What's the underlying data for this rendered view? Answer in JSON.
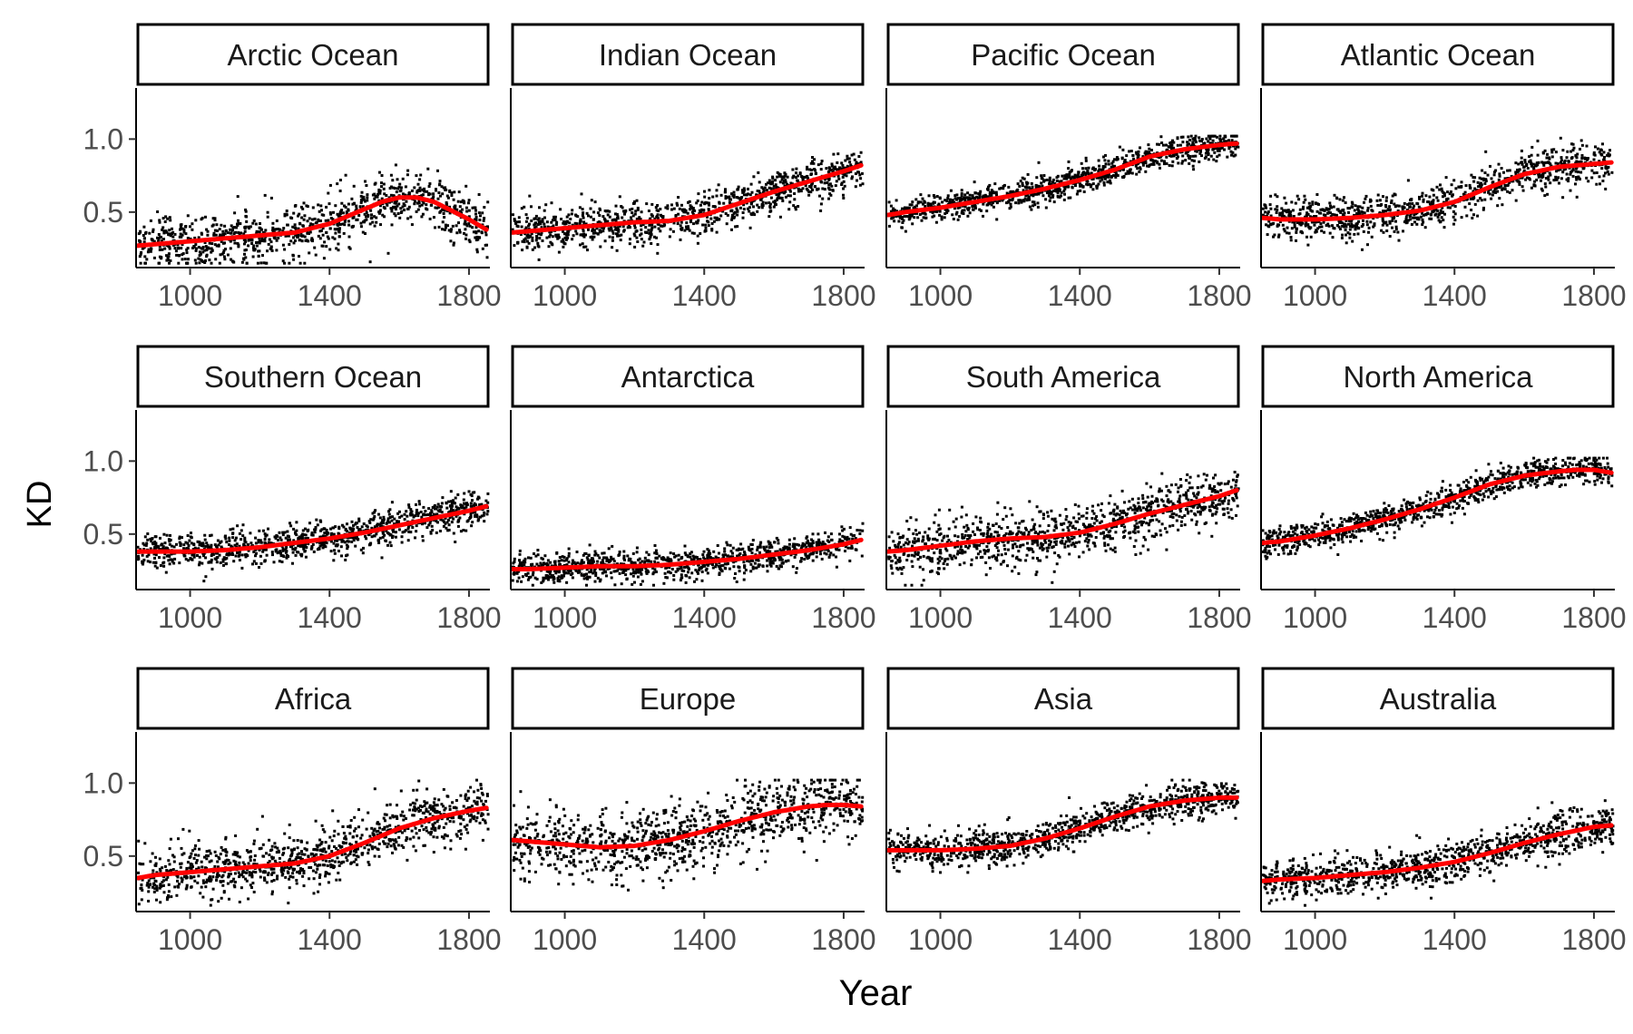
{
  "chart_data": {
    "type": "scatter",
    "layout": "facet-grid",
    "facet_rows": 3,
    "facet_cols": 4,
    "xlabel": "Year",
    "ylabel": "KD",
    "xlim": [
      845,
      1860
    ],
    "ylim": [
      0.12,
      1.35
    ],
    "x_ticks": [
      1000,
      1400,
      1800
    ],
    "y_ticks": [
      0.5,
      1.0
    ],
    "y_tick_labels": [
      "0.5",
      "1.0"
    ],
    "grid": false,
    "point_color": "#000000",
    "smooth_color": "#ff0000",
    "series_per_panel": [
      "points",
      "smooth trend"
    ],
    "panels": [
      {
        "name": "Arctic Ocean",
        "trend": {
          "x": [
            850,
            900,
            1000,
            1100,
            1200,
            1300,
            1400,
            1500,
            1550,
            1600,
            1650,
            1700,
            1750,
            1800,
            1850
          ],
          "y": [
            0.27,
            0.28,
            0.3,
            0.32,
            0.34,
            0.36,
            0.42,
            0.52,
            0.57,
            0.6,
            0.6,
            0.57,
            0.51,
            0.45,
            0.38
          ]
        },
        "spread": 0.09
      },
      {
        "name": "Indian Ocean",
        "trend": {
          "x": [
            850,
            900,
            1000,
            1100,
            1200,
            1300,
            1400,
            1500,
            1600,
            1700,
            1800,
            1850
          ],
          "y": [
            0.36,
            0.37,
            0.39,
            0.41,
            0.43,
            0.44,
            0.48,
            0.56,
            0.64,
            0.71,
            0.78,
            0.82
          ]
        },
        "spread": 0.07
      },
      {
        "name": "Pacific Ocean",
        "trend": {
          "x": [
            850,
            900,
            1000,
            1100,
            1200,
            1300,
            1400,
            1500,
            1600,
            1700,
            1800,
            1850
          ],
          "y": [
            0.48,
            0.5,
            0.53,
            0.57,
            0.61,
            0.66,
            0.72,
            0.79,
            0.88,
            0.93,
            0.96,
            0.97
          ]
        },
        "spread": 0.05
      },
      {
        "name": "Atlantic Ocean",
        "trend": {
          "x": [
            850,
            900,
            1000,
            1100,
            1200,
            1300,
            1400,
            1500,
            1600,
            1700,
            1800,
            1850
          ],
          "y": [
            0.46,
            0.45,
            0.45,
            0.46,
            0.48,
            0.51,
            0.57,
            0.67,
            0.76,
            0.81,
            0.83,
            0.84
          ]
        },
        "spread": 0.07
      },
      {
        "name": "Southern Ocean",
        "trend": {
          "x": [
            850,
            900,
            1000,
            1100,
            1200,
            1300,
            1400,
            1500,
            1600,
            1700,
            1800,
            1850
          ],
          "y": [
            0.38,
            0.38,
            0.38,
            0.39,
            0.41,
            0.44,
            0.47,
            0.51,
            0.56,
            0.61,
            0.66,
            0.69
          ]
        },
        "spread": 0.06
      },
      {
        "name": "Antarctica",
        "trend": {
          "x": [
            850,
            900,
            1000,
            1100,
            1200,
            1300,
            1400,
            1500,
            1600,
            1700,
            1800,
            1850
          ],
          "y": [
            0.26,
            0.26,
            0.27,
            0.28,
            0.28,
            0.29,
            0.31,
            0.33,
            0.36,
            0.39,
            0.43,
            0.46
          ]
        },
        "spread": 0.05
      },
      {
        "name": "South America",
        "trend": {
          "x": [
            850,
            900,
            1000,
            1100,
            1200,
            1300,
            1400,
            1500,
            1600,
            1700,
            1800,
            1850
          ],
          "y": [
            0.38,
            0.39,
            0.42,
            0.45,
            0.47,
            0.48,
            0.51,
            0.57,
            0.64,
            0.7,
            0.76,
            0.8
          ]
        },
        "spread": 0.09
      },
      {
        "name": "North America",
        "trend": {
          "x": [
            850,
            900,
            1000,
            1100,
            1200,
            1300,
            1400,
            1500,
            1600,
            1700,
            1750,
            1800,
            1850
          ],
          "y": [
            0.44,
            0.45,
            0.49,
            0.54,
            0.6,
            0.67,
            0.75,
            0.84,
            0.9,
            0.93,
            0.94,
            0.94,
            0.92
          ]
        },
        "spread": 0.05
      },
      {
        "name": "Africa",
        "trend": {
          "x": [
            850,
            900,
            1000,
            1100,
            1200,
            1300,
            1400,
            1500,
            1600,
            1700,
            1800,
            1850
          ],
          "y": [
            0.35,
            0.37,
            0.39,
            0.41,
            0.43,
            0.45,
            0.5,
            0.59,
            0.69,
            0.76,
            0.81,
            0.83
          ]
        },
        "spread": 0.09
      },
      {
        "name": "Europe",
        "trend": {
          "x": [
            850,
            900,
            1000,
            1100,
            1200,
            1300,
            1400,
            1500,
            1600,
            1700,
            1750,
            1800,
            1850
          ],
          "y": [
            0.61,
            0.6,
            0.58,
            0.56,
            0.57,
            0.61,
            0.67,
            0.74,
            0.8,
            0.84,
            0.85,
            0.85,
            0.84
          ]
        },
        "spread": 0.12
      },
      {
        "name": "Asia",
        "trend": {
          "x": [
            850,
            900,
            1000,
            1100,
            1200,
            1300,
            1400,
            1500,
            1600,
            1700,
            1800,
            1850
          ],
          "y": [
            0.54,
            0.54,
            0.54,
            0.55,
            0.57,
            0.62,
            0.69,
            0.77,
            0.84,
            0.88,
            0.9,
            0.9
          ]
        },
        "spread": 0.06
      },
      {
        "name": "Australia",
        "trend": {
          "x": [
            850,
            900,
            1000,
            1100,
            1200,
            1300,
            1400,
            1500,
            1600,
            1700,
            1800,
            1850
          ],
          "y": [
            0.33,
            0.34,
            0.35,
            0.37,
            0.39,
            0.42,
            0.46,
            0.52,
            0.59,
            0.65,
            0.7,
            0.71
          ]
        },
        "spread": 0.07
      }
    ]
  }
}
